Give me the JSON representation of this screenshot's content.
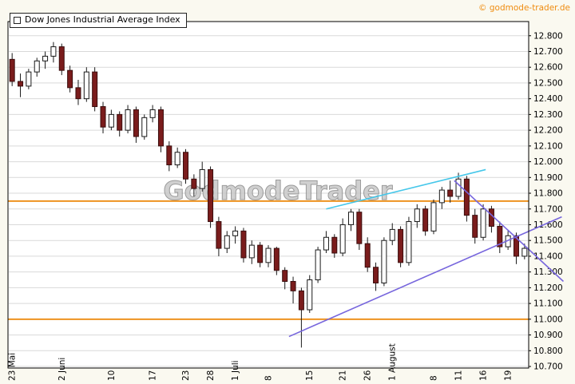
{
  "header": {
    "title": "Dow Jones Industrial Average Index",
    "copyright": "© godmode-trader.de"
  },
  "watermark": "GodmodeTrader",
  "colors": {
    "background": "#faf9f0",
    "plot_bg": "#ffffff",
    "grid": "#d9d9d9",
    "border": "#000000",
    "candle_up_fill": "#ffffff",
    "candle_down_fill": "#7a1c1c",
    "candle_up_stroke": "#1a1a1a",
    "candle_down_stroke": "#3a0d0d",
    "wick": "#1a1a1a",
    "horizontal_line": "#ee9320",
    "trend_support": "#7766dd",
    "trend_accel": "#45c7ea",
    "axis_text": "#000000",
    "copyright_text": "#ef8c10",
    "watermark_fill": "#c8c8c8",
    "watermark_stroke": "#8a8a8a"
  },
  "chart_data": {
    "type": "candlestick",
    "title": "Dow Jones Industrial Average Index",
    "ylim": [
      10690,
      12890
    ],
    "y_ticks": [
      12800,
      12700,
      12600,
      12500,
      12400,
      12300,
      12200,
      12100,
      12000,
      11900,
      11800,
      11700,
      11600,
      11500,
      11400,
      11300,
      11200,
      11100,
      11000,
      10900,
      10800,
      10700
    ],
    "x_ticks": [
      {
        "i": 0,
        "label": "23 Mai"
      },
      {
        "i": 6,
        "label": "2 Juni"
      },
      {
        "i": 12,
        "label": "10"
      },
      {
        "i": 17,
        "label": "17"
      },
      {
        "i": 21,
        "label": "23"
      },
      {
        "i": 24,
        "label": "28"
      },
      {
        "i": 27,
        "label": "1 Juli"
      },
      {
        "i": 31,
        "label": "8"
      },
      {
        "i": 36,
        "label": "15"
      },
      {
        "i": 40,
        "label": "21"
      },
      {
        "i": 43,
        "label": "26"
      },
      {
        "i": 46,
        "label": "1 August"
      },
      {
        "i": 51,
        "label": "8"
      },
      {
        "i": 54,
        "label": "11"
      },
      {
        "i": 57,
        "label": "16"
      },
      {
        "i": 60,
        "label": "19"
      }
    ],
    "candles": [
      [
        12650,
        12690,
        12480,
        12510
      ],
      [
        12510,
        12560,
        12410,
        12480
      ],
      [
        12480,
        12590,
        12460,
        12570
      ],
      [
        12570,
        12660,
        12540,
        12640
      ],
      [
        12640,
        12700,
        12590,
        12670
      ],
      [
        12670,
        12760,
        12630,
        12730
      ],
      [
        12730,
        12750,
        12550,
        12580
      ],
      [
        12580,
        12610,
        12440,
        12470
      ],
      [
        12470,
        12520,
        12360,
        12400
      ],
      [
        12400,
        12600,
        12380,
        12570
      ],
      [
        12570,
        12600,
        12320,
        12350
      ],
      [
        12350,
        12380,
        12180,
        12220
      ],
      [
        12220,
        12330,
        12200,
        12300
      ],
      [
        12300,
        12320,
        12160,
        12200
      ],
      [
        12200,
        12360,
        12180,
        12330
      ],
      [
        12330,
        12350,
        12120,
        12160
      ],
      [
        12160,
        12300,
        12140,
        12280
      ],
      [
        12280,
        12360,
        12250,
        12330
      ],
      [
        12330,
        12350,
        12060,
        12100
      ],
      [
        12100,
        12130,
        11940,
        11980
      ],
      [
        11980,
        12090,
        11960,
        12060
      ],
      [
        12060,
        12080,
        11860,
        11890
      ],
      [
        11890,
        11920,
        11780,
        11830
      ],
      [
        11830,
        12000,
        11810,
        11950
      ],
      [
        11950,
        11970,
        11580,
        11620
      ],
      [
        11620,
        11650,
        11400,
        11450
      ],
      [
        11450,
        11560,
        11420,
        11530
      ],
      [
        11530,
        11590,
        11480,
        11560
      ],
      [
        11560,
        11580,
        11360,
        11390
      ],
      [
        11390,
        11500,
        11350,
        11470
      ],
      [
        11470,
        11490,
        11330,
        11360
      ],
      [
        11360,
        11470,
        11330,
        11450
      ],
      [
        11450,
        11460,
        11280,
        11310
      ],
      [
        11310,
        11330,
        11190,
        11240
      ],
      [
        11240,
        11270,
        11100,
        11180
      ],
      [
        11180,
        11200,
        10820,
        11060
      ],
      [
        11060,
        11280,
        11040,
        11250
      ],
      [
        11250,
        11460,
        11230,
        11440
      ],
      [
        11440,
        11560,
        11420,
        11520
      ],
      [
        11520,
        11540,
        11390,
        11420
      ],
      [
        11420,
        11640,
        11400,
        11600
      ],
      [
        11600,
        11700,
        11560,
        11680
      ],
      [
        11680,
        11700,
        11440,
        11480
      ],
      [
        11480,
        11520,
        11300,
        11330
      ],
      [
        11330,
        11360,
        11180,
        11230
      ],
      [
        11230,
        11520,
        11210,
        11500
      ],
      [
        11500,
        11610,
        11470,
        11570
      ],
      [
        11570,
        11590,
        11330,
        11360
      ],
      [
        11360,
        11650,
        11340,
        11620
      ],
      [
        11620,
        11730,
        11580,
        11700
      ],
      [
        11700,
        11720,
        11530,
        11560
      ],
      [
        11560,
        11760,
        11540,
        11740
      ],
      [
        11740,
        11840,
        11700,
        11820
      ],
      [
        11820,
        11880,
        11740,
        11780
      ],
      [
        11780,
        11930,
        11760,
        11890
      ],
      [
        11890,
        11910,
        11620,
        11660
      ],
      [
        11660,
        11700,
        11480,
        11520
      ],
      [
        11520,
        11730,
        11500,
        11700
      ],
      [
        11700,
        11720,
        11550,
        11590
      ],
      [
        11590,
        11620,
        11420,
        11460
      ],
      [
        11460,
        11560,
        11440,
        11530
      ],
      [
        11530,
        11550,
        11350,
        11400
      ],
      [
        11400,
        11480,
        11380,
        11450
      ]
    ],
    "horizontal_lines": [
      11750,
      11000
    ],
    "trend_lines": [
      {
        "name": "ascending-support-line",
        "i1": 34.0,
        "p1": 10890,
        "i2": 67.0,
        "p2": 11650,
        "color_key": "trend_support"
      },
      {
        "name": "descending-resistance-line",
        "i1": 54.0,
        "p1": 11880,
        "i2": 67.2,
        "p2": 11240,
        "color_key": "trend_support"
      },
      {
        "name": "acceleration-trend-line",
        "i1": 38.5,
        "p1": 11700,
        "i2": 57.8,
        "p2": 11950,
        "color_key": "trend_accel"
      }
    ],
    "legend_position": "top-left",
    "grid": true
  }
}
